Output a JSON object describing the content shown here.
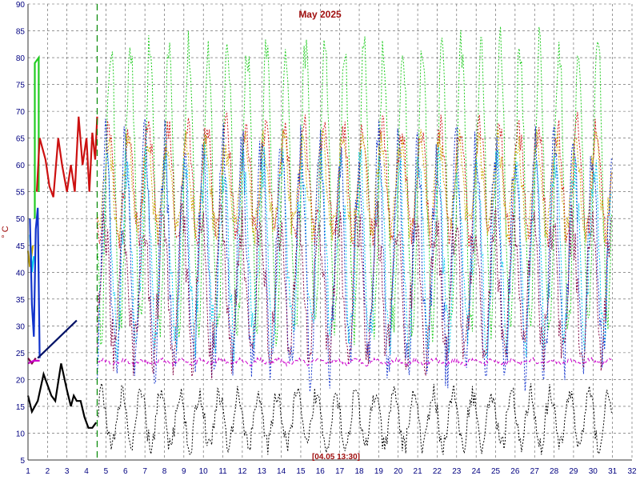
{
  "chart_data": {
    "type": "line",
    "title": "May 2025",
    "ylabel": "° C",
    "xlabel": "",
    "timestamp_label": "[04.05 13:30]",
    "xlim": [
      1,
      32
    ],
    "ylim": [
      5,
      90
    ],
    "x_ticks": [
      "1",
      "2",
      "3",
      "4",
      "5",
      "6",
      "7",
      "8",
      "9",
      "10",
      "11",
      "12",
      "13",
      "14",
      "15",
      "16",
      "17",
      "18",
      "19",
      "20",
      "21",
      "22",
      "23",
      "24",
      "25",
      "26",
      "27",
      "28",
      "29",
      "30",
      "31",
      "32"
    ],
    "y_ticks": [
      "5",
      "10",
      "15",
      "20",
      "25",
      "30",
      "35",
      "40",
      "45",
      "50",
      "55",
      "60",
      "65",
      "70",
      "75",
      "80",
      "85",
      "90"
    ],
    "grid": true,
    "marker_x": 4.55,
    "series": [
      {
        "color": "#22cc22",
        "style": "dotted",
        "solid_points": [
          [
            1.35,
            50
          ],
          [
            1.35,
            79
          ],
          [
            1.55,
            80
          ],
          [
            1.55,
            55
          ]
        ],
        "dotted_base": 56,
        "dotted_amp": 26,
        "dotted_noise": 4
      },
      {
        "color": "#cc1111",
        "style": "dotted",
        "solid_points": [
          [
            1.45,
            55
          ],
          [
            1.6,
            65
          ],
          [
            1.9,
            61
          ],
          [
            2.1,
            56
          ],
          [
            2.3,
            54
          ],
          [
            2.55,
            65
          ],
          [
            2.75,
            60
          ],
          [
            3.0,
            55
          ],
          [
            3.2,
            60
          ],
          [
            3.4,
            55
          ],
          [
            3.6,
            69
          ],
          [
            3.8,
            60
          ],
          [
            4.0,
            65
          ],
          [
            4.15,
            55
          ],
          [
            4.3,
            66
          ],
          [
            4.45,
            61
          ],
          [
            4.55,
            69
          ]
        ],
        "dotted_base": 57,
        "dotted_amp": 10,
        "dotted_noise": 3
      },
      {
        "color": "#ccaa00",
        "style": "dotted",
        "solid_points": [
          [
            1.0,
            44
          ],
          [
            1.1,
            41
          ],
          [
            1.25,
            45
          ]
        ],
        "dotted_base": 56,
        "dotted_amp": 8,
        "dotted_noise": 3
      },
      {
        "color": "#00ccee",
        "style": "dotted",
        "solid_points": [
          [
            1.1,
            47
          ],
          [
            1.2,
            40
          ],
          [
            1.3,
            43
          ]
        ],
        "dotted_base": 44,
        "dotted_amp": 16,
        "dotted_noise": 5
      },
      {
        "color": "#1133cc",
        "style": "dotted",
        "solid_points": [
          [
            1.1,
            50
          ],
          [
            1.2,
            34
          ],
          [
            1.3,
            28
          ],
          [
            1.4,
            48
          ],
          [
            1.5,
            52
          ],
          [
            1.6,
            24
          ]
        ],
        "dotted_base": 43,
        "dotted_amp": 20,
        "dotted_noise": 6
      },
      {
        "color": "#800040",
        "style": "dotted",
        "solid_points": [
          [
            1.0,
            24
          ],
          [
            1.2,
            23
          ],
          [
            1.4,
            24
          ]
        ],
        "dotted_base": 37,
        "dotted_amp": 12,
        "dotted_noise": 5
      },
      {
        "color": "#cc00cc",
        "style": "dashed",
        "solid_points": [
          [
            1.0,
            23
          ],
          [
            1.3,
            23.5
          ],
          [
            1.6,
            23.5
          ]
        ],
        "dotted_base": 23.3,
        "dotted_amp": 0.4,
        "dotted_noise": 0.4
      },
      {
        "color": "#000000",
        "style": "dotted",
        "solid_points": [
          [
            1.0,
            17
          ],
          [
            1.2,
            14
          ],
          [
            1.5,
            16
          ],
          [
            1.8,
            21
          ],
          [
            2.2,
            17
          ],
          [
            2.4,
            16
          ],
          [
            2.7,
            23
          ],
          [
            3.0,
            18
          ],
          [
            3.2,
            15
          ],
          [
            3.35,
            17
          ],
          [
            3.5,
            16
          ],
          [
            3.7,
            16
          ],
          [
            3.9,
            13
          ],
          [
            4.1,
            11
          ],
          [
            4.3,
            11
          ],
          [
            4.5,
            12
          ]
        ],
        "dotted_base": 12.5,
        "dotted_amp": 5,
        "dotted_noise": 2
      },
      {
        "color": "#001166",
        "style": "solid",
        "solid_points": [
          [
            1.5,
            24
          ],
          [
            3.5,
            31
          ]
        ],
        "dotted_base": null,
        "dotted_amp": 0,
        "dotted_noise": 0
      }
    ]
  }
}
